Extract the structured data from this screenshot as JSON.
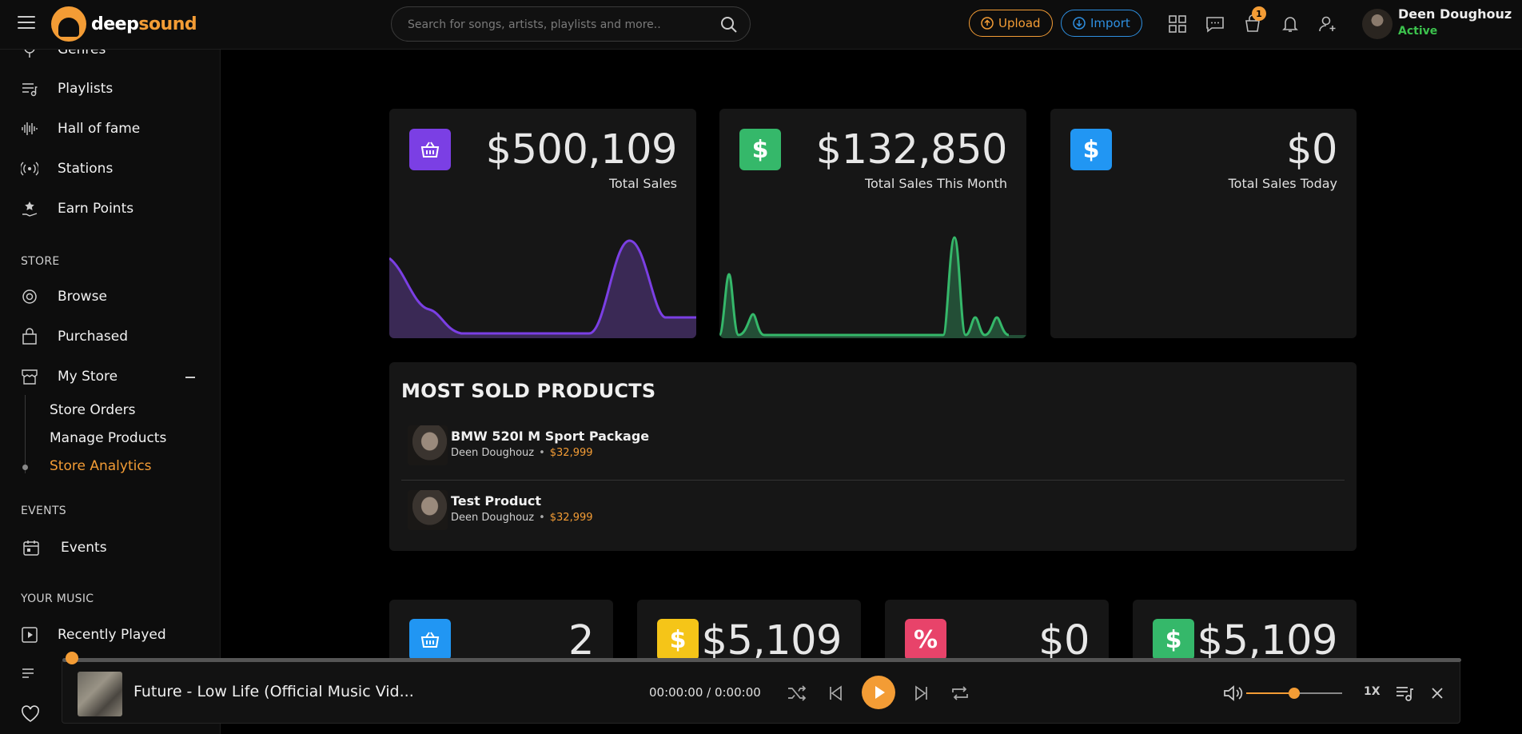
{
  "header": {
    "logo": {
      "part1": "deep",
      "part2": "sound"
    },
    "search_placeholder": "Search for songs, artists, playlists and more..",
    "upload_label": "Upload",
    "import_label": "Import",
    "notifications_badge": "1",
    "user_name": "Deen Doughouz",
    "user_status": "Active"
  },
  "sidebar": {
    "top_items": [
      {
        "label": "Genres",
        "icon": "genres-icon"
      },
      {
        "label": "Playlists",
        "icon": "playlist-icon"
      },
      {
        "label": "Hall of fame",
        "icon": "soundwave-icon"
      },
      {
        "label": "Stations",
        "icon": "radio-icon"
      },
      {
        "label": "Earn Points",
        "icon": "points-icon"
      }
    ],
    "store_section": "STORE",
    "store_items": [
      {
        "label": "Browse",
        "icon": "browse-icon"
      },
      {
        "label": "Purchased",
        "icon": "bag-icon"
      },
      {
        "label": "My Store",
        "icon": "store-icon"
      }
    ],
    "my_store_sub": [
      "Store Orders",
      "Manage Products",
      "Store Analytics"
    ],
    "events_section": "EVENTS",
    "events_item": "Events",
    "music_section": "YOUR MUSIC",
    "music_items": [
      {
        "label": "Recently Played",
        "icon": "play-square-icon"
      }
    ]
  },
  "stats": {
    "total_sales": {
      "value": "$500,109",
      "label": "Total Sales"
    },
    "month_sales": {
      "value": "$132,850",
      "label": "Total Sales This Month"
    },
    "today_sales": {
      "value": "$0",
      "label": "Total Sales Today"
    }
  },
  "most_sold": {
    "title": "MOST SOLD PRODUCTS",
    "products": [
      {
        "name": "BMW 520I M Sport Package",
        "seller": "Deen Doughouz",
        "price": "$32,999"
      },
      {
        "name": "Test Product",
        "seller": "Deen Doughouz",
        "price": "$32,999"
      }
    ]
  },
  "mini_stats": [
    {
      "value": "2",
      "icon": "basket-icon",
      "color": "#2196f3"
    },
    {
      "value": "$5,109",
      "icon": "dollar-icon",
      "color": "#f5c518"
    },
    {
      "value": "$0",
      "icon": "percent-icon",
      "color": "#e8436a"
    },
    {
      "value": "$5,109",
      "icon": "dollar-icon",
      "color": "#35b86a"
    }
  ],
  "player": {
    "track_title": "Future - Low Life (Official Music Vid...",
    "time": "00:00:00 / 0:00:00",
    "speed": "1X",
    "progress": 0,
    "volume": 0.5
  },
  "colors": {
    "accent": "#f39c35",
    "purple": "#7b3fe4",
    "green": "#35b86a",
    "blue": "#2196f3"
  }
}
